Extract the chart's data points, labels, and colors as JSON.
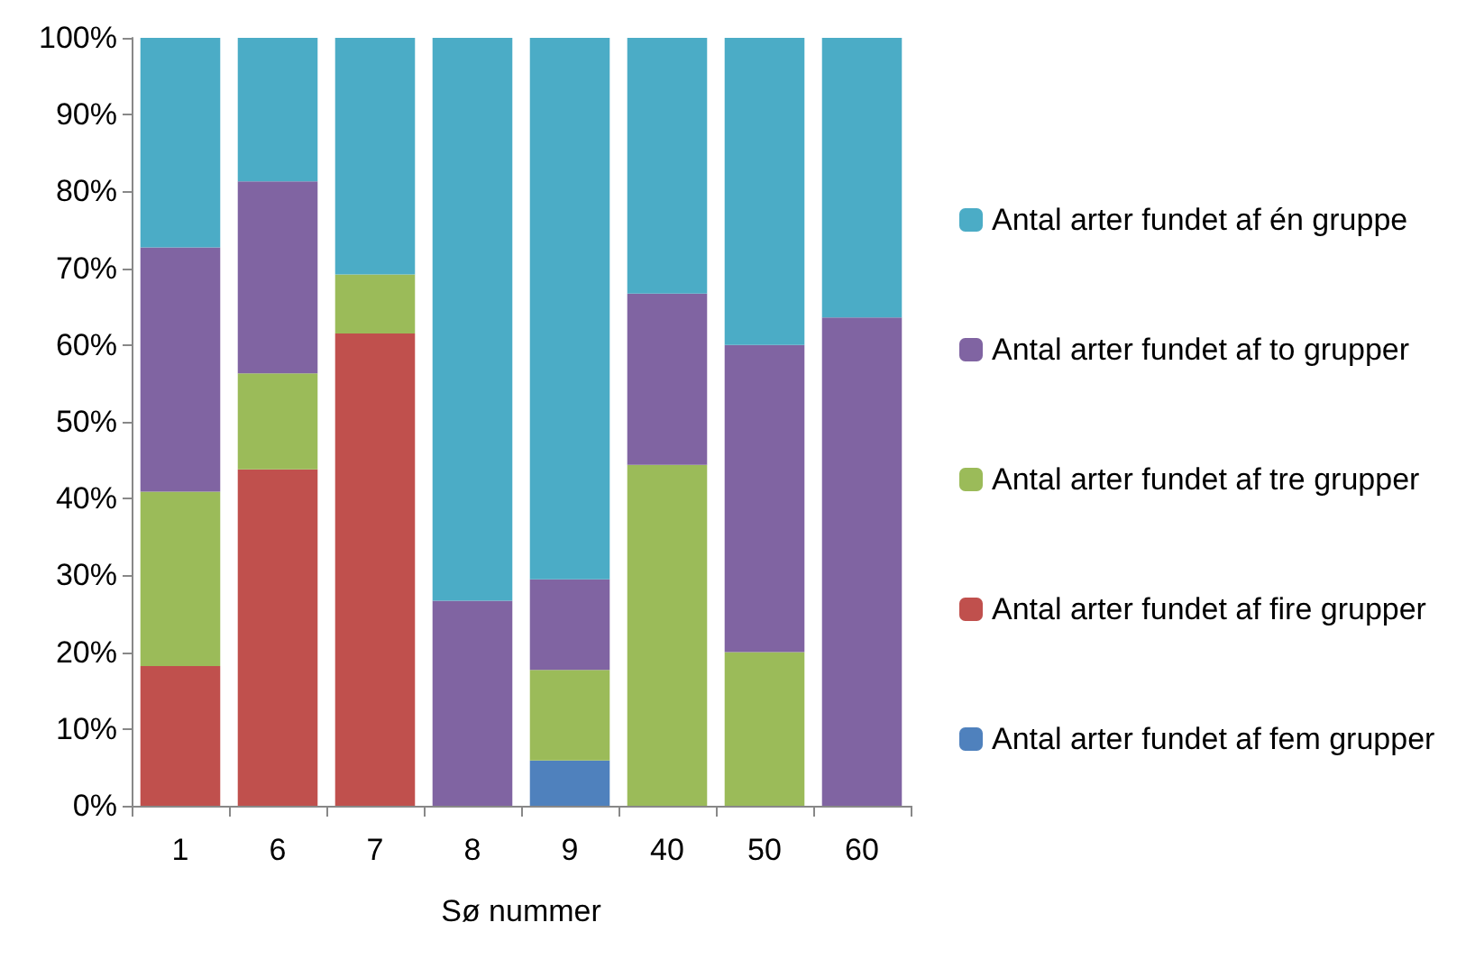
{
  "chart_data": {
    "type": "bar",
    "stacked": true,
    "xlabel": "Sø nummer",
    "categories": [
      "1",
      "6",
      "7",
      "8",
      "9",
      "40",
      "50",
      "60"
    ],
    "series": [
      {
        "name": "Antal arter fundet af fem grupper",
        "color": "#4f81bd",
        "values": [
          0,
          0,
          0,
          0,
          5.9,
          0,
          0,
          0
        ]
      },
      {
        "name": "Antal arter fundet af fire grupper",
        "color": "#c0504d",
        "values": [
          18.2,
          43.8,
          61.5,
          0,
          0,
          0,
          0,
          0
        ]
      },
      {
        "name": "Antal arter fundet af tre grupper",
        "color": "#9bbb59",
        "values": [
          22.7,
          12.5,
          7.7,
          0,
          11.8,
          44.4,
          20,
          0
        ]
      },
      {
        "name": "Antal arter fundet af to grupper",
        "color": "#8064a2",
        "values": [
          31.8,
          25,
          0,
          26.7,
          11.8,
          22.3,
          40,
          63.6
        ]
      },
      {
        "name": "Antal arter fundet af én gruppe",
        "color": "#4bacc6",
        "values": [
          27.3,
          18.7,
          30.8,
          73.3,
          70.5,
          33.3,
          40,
          36.4
        ]
      }
    ],
    "ylim": [
      0,
      100
    ],
    "yticks": [
      {
        "value": 0,
        "label": "0%"
      },
      {
        "value": 10,
        "label": "10%"
      },
      {
        "value": 20,
        "label": "20%"
      },
      {
        "value": 30,
        "label": "30%"
      },
      {
        "value": 40,
        "label": "40%"
      },
      {
        "value": 50,
        "label": "50%"
      },
      {
        "value": 60,
        "label": "60%"
      },
      {
        "value": 70,
        "label": "70%"
      },
      {
        "value": 80,
        "label": "80%"
      },
      {
        "value": 90,
        "label": "90%"
      },
      {
        "value": 100,
        "label": "100%"
      }
    ],
    "grid": false,
    "legend": "right"
  }
}
